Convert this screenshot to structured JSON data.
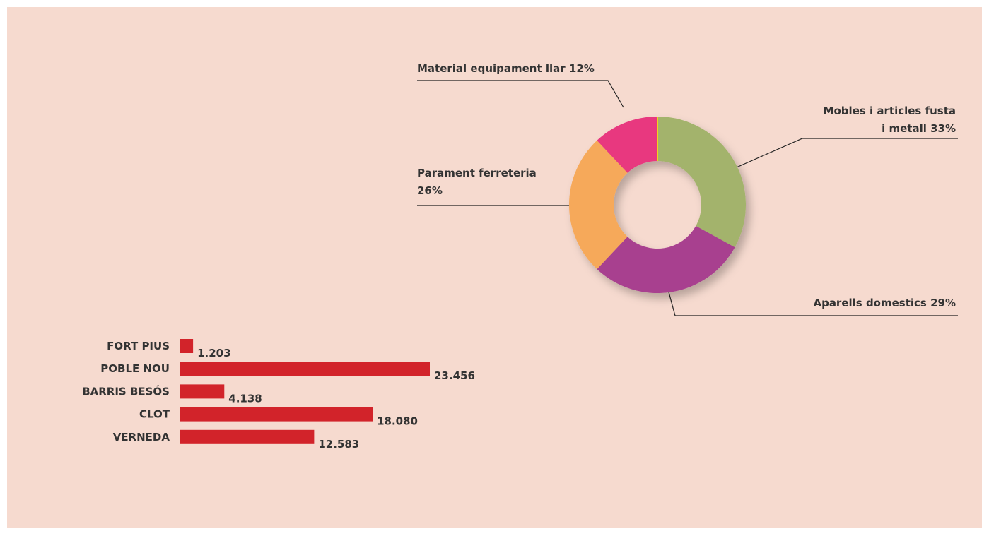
{
  "chart_data": [
    {
      "type": "donut",
      "categories": [
        "Mobles i articles fusta i metall",
        "Aparells domestics",
        "Parament ferreteria",
        "Material equipament llar"
      ],
      "values": [
        33,
        29,
        26,
        12
      ],
      "value_labels": [
        "33%",
        "29%",
        "26%",
        "12%"
      ],
      "colors": [
        "#a3b36c",
        "#a8408f",
        "#f6a95a",
        "#e8387f"
      ]
    },
    {
      "type": "hbar",
      "categories": [
        "FORT PIUS",
        "POBLE NOU",
        "BARRIS BESÓS",
        "CLOT",
        "VERNEDA"
      ],
      "values": [
        1203,
        23456,
        4138,
        18080,
        12583
      ],
      "value_labels": [
        "1.203",
        "23.456",
        "4.138",
        "18.080",
        "12.583"
      ],
      "color": "#d2232a"
    }
  ]
}
